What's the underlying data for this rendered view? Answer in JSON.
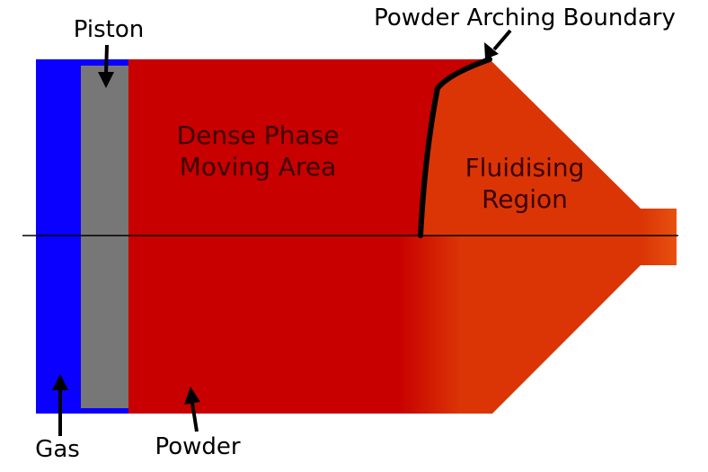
{
  "diagram": {
    "labels": {
      "piston": "Piston",
      "boundary": "Powder Arching Boundary",
      "dense_line1": "Dense Phase",
      "dense_line2": "Moving Area",
      "fluid_line1": "Fluidising",
      "fluid_line2": "Region",
      "gas": "Gas",
      "powder": "Powder"
    },
    "colors": {
      "gas": "#0a00ff",
      "piston": "#777777",
      "dense": "#c80000",
      "fluid": "#db3506",
      "nozzle": "#e0420f",
      "boundary": "#000000"
    }
  }
}
